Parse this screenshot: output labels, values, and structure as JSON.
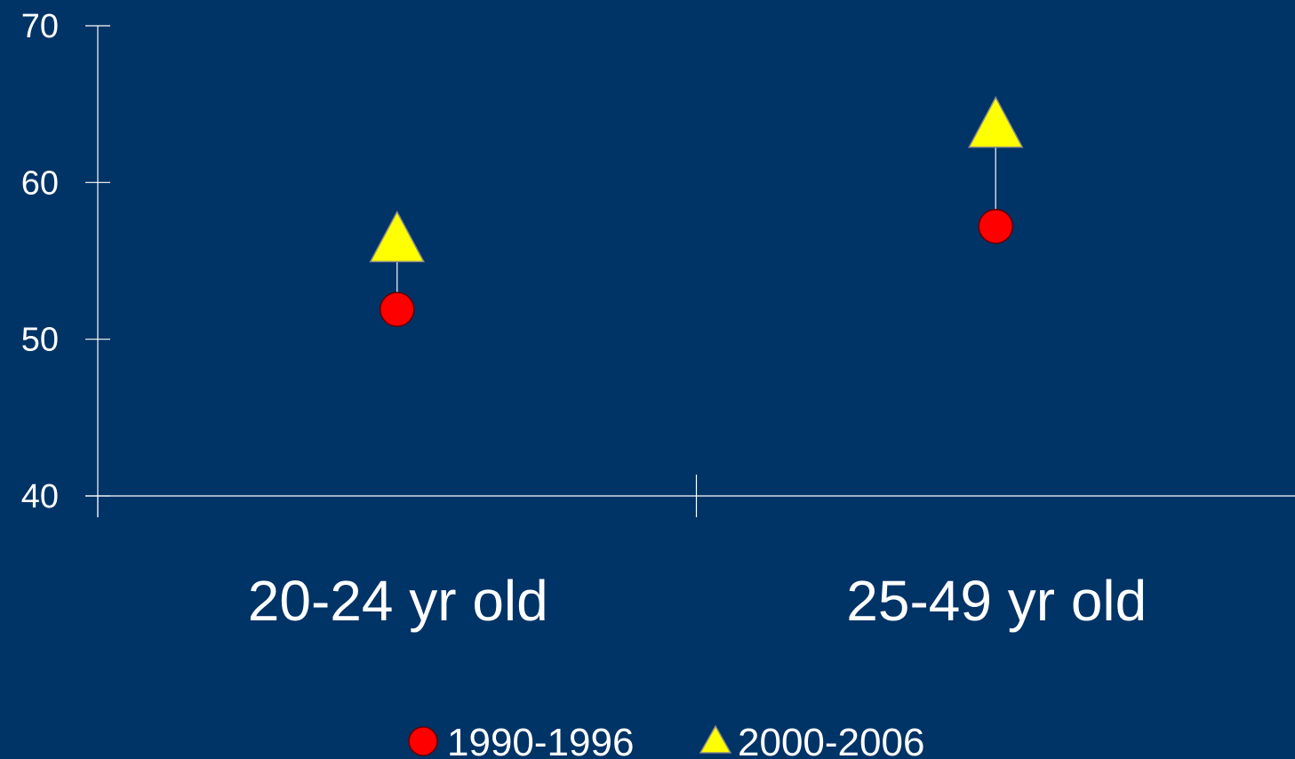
{
  "chart_data": {
    "type": "scatter",
    "categories": [
      "20-24 yr old",
      "25-49 yr old"
    ],
    "series": [
      {
        "name": "1990-1996",
        "marker": "circle",
        "color": "#ff0000",
        "values": [
          51.9,
          57.2
        ]
      },
      {
        "name": "2000-2006",
        "marker": "triangle",
        "color": "#ffff00",
        "values": [
          56.2,
          63.5
        ]
      }
    ],
    "ylim": [
      40,
      70
    ],
    "yticks": [
      40,
      50,
      60,
      70
    ],
    "ytick_labels": [
      "40",
      "50",
      "60",
      "70"
    ],
    "connector_lines": true,
    "legend_position": "bottom-center",
    "background_color": "#003366",
    "axis_color": "#ffffff"
  }
}
